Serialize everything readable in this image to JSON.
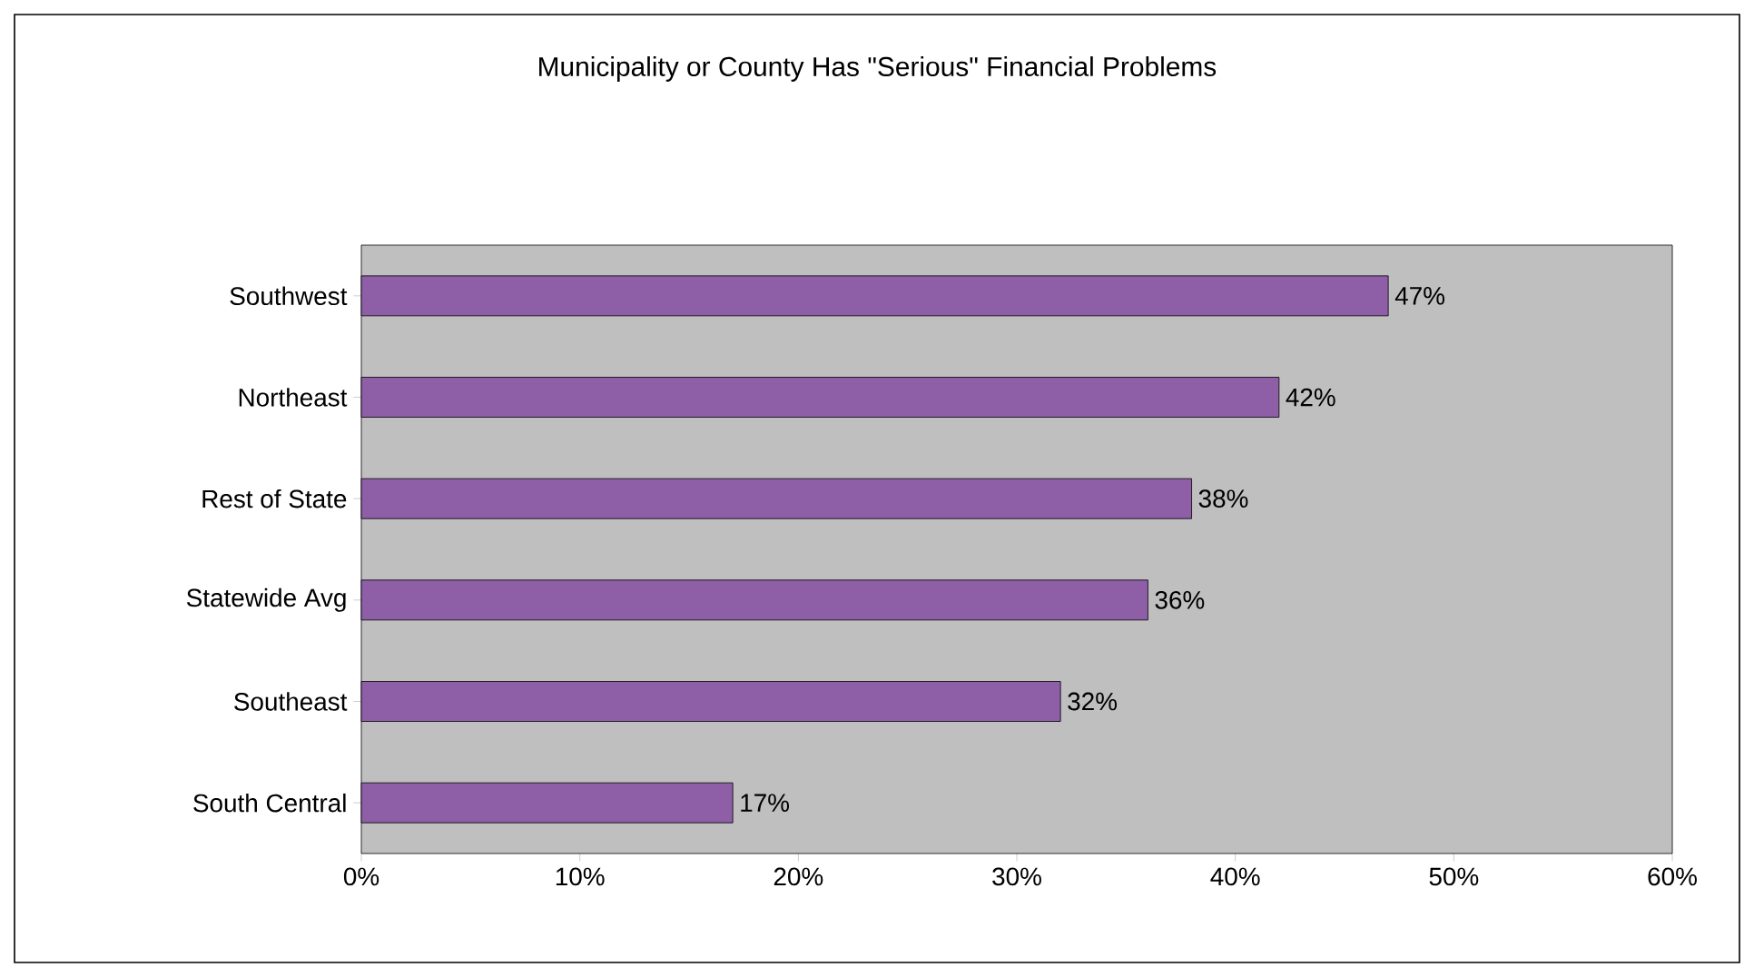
{
  "chart_data": {
    "type": "bar",
    "orientation": "horizontal",
    "title": "Municipality or County Has \"Serious\" Financial Problems",
    "categories": [
      "Southwest",
      "Northeast",
      "Rest of State",
      "Statewide Avg",
      "Southeast",
      "South Central"
    ],
    "values": [
      47,
      42,
      38,
      36,
      32,
      17
    ],
    "value_labels": [
      "47%",
      "42%",
      "38%",
      "36%",
      "32%",
      "17%"
    ],
    "color": "#8e5ea6",
    "xlim": [
      0,
      60
    ],
    "xticks": [
      {
        "value": 0,
        "label": "0%"
      },
      {
        "value": 10,
        "label": "10%"
      },
      {
        "value": 20,
        "label": "20%"
      },
      {
        "value": 30,
        "label": "30%"
      },
      {
        "value": 40,
        "label": "40%"
      },
      {
        "value": 50,
        "label": "50%"
      },
      {
        "value": 60,
        "label": "60%"
      }
    ]
  }
}
